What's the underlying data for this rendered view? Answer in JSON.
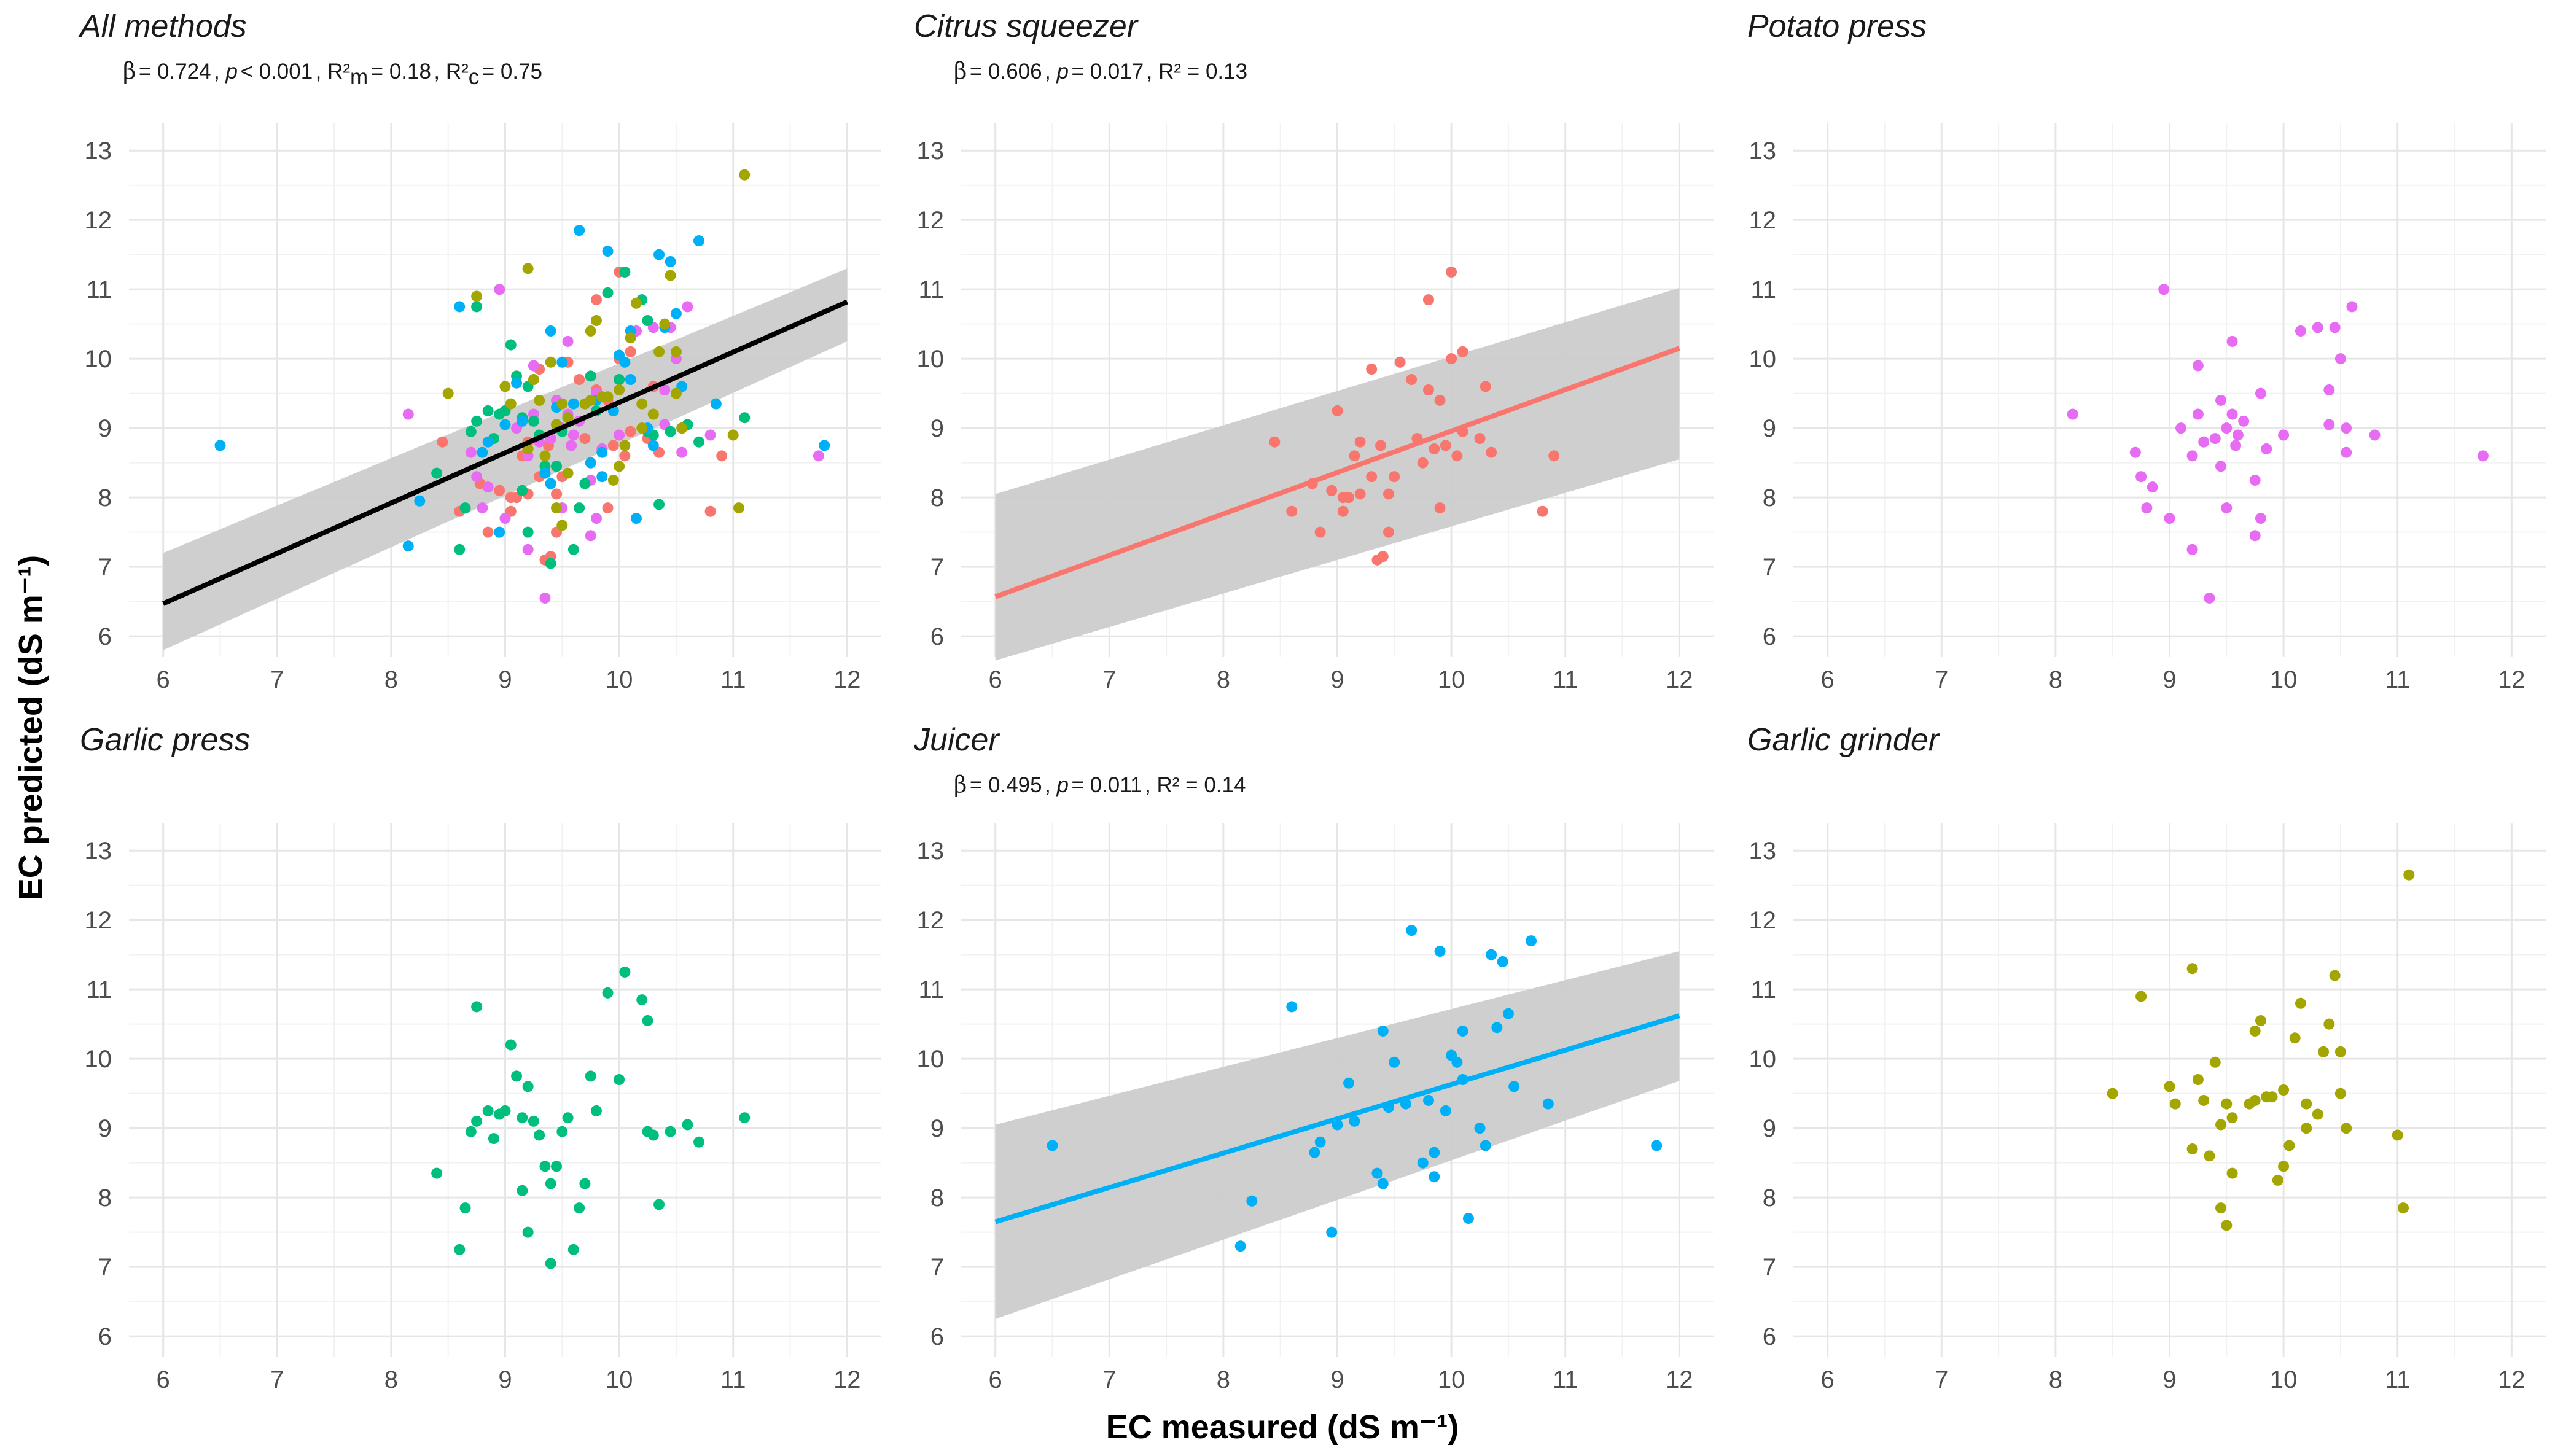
{
  "figure": {
    "y_axis_title": "EC predicted (dS m⁻¹)",
    "x_axis_title": "EC measured (dS m⁻¹)"
  },
  "colors": {
    "Citrus squeezer": "#F8766D",
    "Garlic grinder": "#A3A500",
    "Garlic press": "#00BF7D",
    "Juicer": "#00B0F6",
    "Potato press": "#E76BF3",
    "overall_line": "#000000",
    "ribbon": "#CCCCCC"
  },
  "chart_data": [
    {
      "type": "scatter",
      "panel": "all",
      "title": "All methods",
      "stats": {
        "beta_symbol": "β",
        "beta": "0.724",
        "p": "< 0.001",
        "r2m": "0.18",
        "r2c": "0.75"
      },
      "xlim": [
        5.7,
        12.3
      ],
      "ylim": [
        5.7,
        13.4
      ],
      "xticks": [
        6,
        7,
        8,
        9,
        10,
        11,
        12
      ],
      "yticks": [
        6,
        7,
        8,
        9,
        10,
        11,
        12,
        13
      ],
      "fit": {
        "x": [
          6,
          12
        ],
        "y": [
          6.47,
          10.82
        ],
        "ci_lo": [
          5.8,
          10.25
        ],
        "ci_hi": [
          7.2,
          11.3
        ],
        "color": "#000000"
      },
      "series_from": [
        "Citrus squeezer",
        "Potato press",
        "Garlic press",
        "Juicer",
        "Garlic grinder"
      ]
    },
    {
      "type": "scatter",
      "panel": "citrus",
      "title": "Citrus squeezer",
      "stats": {
        "beta_symbol": "β",
        "beta": "0.606",
        "p": "0.017",
        "r2": "0.13"
      },
      "xlim": [
        5.7,
        12.3
      ],
      "ylim": [
        5.7,
        13.4
      ],
      "xticks": [
        6,
        7,
        8,
        9,
        10,
        11,
        12
      ],
      "yticks": [
        6,
        7,
        8,
        9,
        10,
        11,
        12,
        13
      ],
      "fit": {
        "x": [
          6,
          12
        ],
        "y": [
          6.57,
          10.15
        ],
        "ci_lo": [
          5.65,
          8.55
        ],
        "ci_hi": [
          8.05,
          11.02
        ],
        "color": "#F8766D"
      },
      "series": [
        {
          "name": "Citrus squeezer",
          "color": "#F8766D",
          "points": [
            [
              8.45,
              8.8
            ],
            [
              8.6,
              7.8
            ],
            [
              8.78,
              8.2
            ],
            [
              8.85,
              7.5
            ],
            [
              8.95,
              8.1
            ],
            [
              9.0,
              9.25
            ],
            [
              9.05,
              8.0
            ],
            [
              9.05,
              7.8
            ],
            [
              9.1,
              8.0
            ],
            [
              9.15,
              8.6
            ],
            [
              9.2,
              8.05
            ],
            [
              9.2,
              8.8
            ],
            [
              9.3,
              8.3
            ],
            [
              9.3,
              9.85
            ],
            [
              9.35,
              7.1
            ],
            [
              9.38,
              8.75
            ],
            [
              9.4,
              7.15
            ],
            [
              9.45,
              8.05
            ],
            [
              9.45,
              7.5
            ],
            [
              9.5,
              8.3
            ],
            [
              9.55,
              9.95
            ],
            [
              9.65,
              9.7
            ],
            [
              9.7,
              8.85
            ],
            [
              9.75,
              8.5
            ],
            [
              9.8,
              10.85
            ],
            [
              9.8,
              9.55
            ],
            [
              9.85,
              8.7
            ],
            [
              9.9,
              9.4
            ],
            [
              9.9,
              7.85
            ],
            [
              9.95,
              8.75
            ],
            [
              10.0,
              11.25
            ],
            [
              10.0,
              10.0
            ],
            [
              10.05,
              8.6
            ],
            [
              10.1,
              10.1
            ],
            [
              10.1,
              8.95
            ],
            [
              10.25,
              8.85
            ],
            [
              10.3,
              9.6
            ],
            [
              10.35,
              8.65
            ],
            [
              10.8,
              7.8
            ],
            [
              10.9,
              8.6
            ]
          ]
        }
      ]
    },
    {
      "type": "scatter",
      "panel": "potato",
      "title": "Potato press",
      "xlim": [
        5.7,
        12.3
      ],
      "ylim": [
        5.7,
        13.4
      ],
      "xticks": [
        6,
        7,
        8,
        9,
        10,
        11,
        12
      ],
      "yticks": [
        6,
        7,
        8,
        9,
        10,
        11,
        12,
        13
      ],
      "series": [
        {
          "name": "Potato press",
          "color": "#E76BF3",
          "points": [
            [
              8.15,
              9.2
            ],
            [
              8.7,
              8.65
            ],
            [
              8.75,
              8.3
            ],
            [
              8.8,
              7.85
            ],
            [
              8.85,
              8.15
            ],
            [
              8.95,
              11.0
            ],
            [
              9.0,
              7.7
            ],
            [
              9.1,
              9.0
            ],
            [
              9.2,
              8.6
            ],
            [
              9.2,
              7.25
            ],
            [
              9.25,
              9.2
            ],
            [
              9.25,
              9.9
            ],
            [
              9.3,
              8.8
            ],
            [
              9.35,
              6.55
            ],
            [
              9.4,
              8.85
            ],
            [
              9.45,
              9.4
            ],
            [
              9.45,
              8.45
            ],
            [
              9.5,
              9.0
            ],
            [
              9.5,
              7.85
            ],
            [
              9.55,
              10.25
            ],
            [
              9.55,
              9.2
            ],
            [
              9.58,
              8.75
            ],
            [
              9.6,
              8.9
            ],
            [
              9.65,
              9.1
            ],
            [
              9.75,
              8.25
            ],
            [
              9.75,
              7.45
            ],
            [
              9.8,
              7.7
            ],
            [
              9.8,
              9.5
            ],
            [
              9.85,
              8.7
            ],
            [
              10.0,
              8.9
            ],
            [
              10.15,
              10.4
            ],
            [
              10.3,
              10.45
            ],
            [
              10.4,
              9.05
            ],
            [
              10.4,
              9.55
            ],
            [
              10.45,
              10.45
            ],
            [
              10.5,
              10.0
            ],
            [
              10.55,
              9.0
            ],
            [
              10.55,
              8.65
            ],
            [
              10.6,
              10.75
            ],
            [
              10.8,
              8.9
            ],
            [
              11.75,
              8.6
            ]
          ]
        }
      ]
    },
    {
      "type": "scatter",
      "panel": "garlic_press",
      "title": "Garlic press",
      "xlim": [
        5.7,
        12.3
      ],
      "ylim": [
        5.7,
        13.4
      ],
      "xticks": [
        6,
        7,
        8,
        9,
        10,
        11,
        12
      ],
      "yticks": [
        6,
        7,
        8,
        9,
        10,
        11,
        12,
        13
      ],
      "series": [
        {
          "name": "Garlic press",
          "color": "#00BF7D",
          "points": [
            [
              8.4,
              8.35
            ],
            [
              8.6,
              7.25
            ],
            [
              8.65,
              7.85
            ],
            [
              8.7,
              8.95
            ],
            [
              8.75,
              10.75
            ],
            [
              8.75,
              9.1
            ],
            [
              8.85,
              9.25
            ],
            [
              8.9,
              8.85
            ],
            [
              8.95,
              9.2
            ],
            [
              9.0,
              9.25
            ],
            [
              9.05,
              10.2
            ],
            [
              9.1,
              9.75
            ],
            [
              9.15,
              9.15
            ],
            [
              9.15,
              8.1
            ],
            [
              9.2,
              7.5
            ],
            [
              9.2,
              9.6
            ],
            [
              9.25,
              9.1
            ],
            [
              9.3,
              8.9
            ],
            [
              9.35,
              8.45
            ],
            [
              9.4,
              7.05
            ],
            [
              9.4,
              8.2
            ],
            [
              9.45,
              8.45
            ],
            [
              9.5,
              8.95
            ],
            [
              9.55,
              9.15
            ],
            [
              9.6,
              7.25
            ],
            [
              9.65,
              7.85
            ],
            [
              9.7,
              8.2
            ],
            [
              9.75,
              9.75
            ],
            [
              9.8,
              9.25
            ],
            [
              9.9,
              10.95
            ],
            [
              10.0,
              9.7
            ],
            [
              10.05,
              11.25
            ],
            [
              10.2,
              10.85
            ],
            [
              10.25,
              8.95
            ],
            [
              10.25,
              10.55
            ],
            [
              10.3,
              8.9
            ],
            [
              10.35,
              7.9
            ],
            [
              10.45,
              8.95
            ],
            [
              10.6,
              9.05
            ],
            [
              10.7,
              8.8
            ],
            [
              11.1,
              9.15
            ]
          ]
        }
      ]
    },
    {
      "type": "scatter",
      "panel": "juicer",
      "title": "Juicer",
      "stats": {
        "beta_symbol": "β",
        "beta": "0.495",
        "p": "0.011",
        "r2": "0.14"
      },
      "xlim": [
        5.7,
        12.3
      ],
      "ylim": [
        5.7,
        13.4
      ],
      "xticks": [
        6,
        7,
        8,
        9,
        10,
        11,
        12
      ],
      "yticks": [
        6,
        7,
        8,
        9,
        10,
        11,
        12,
        13
      ],
      "fit": {
        "x": [
          6,
          12
        ],
        "y": [
          7.65,
          10.62
        ],
        "ci_lo": [
          6.25,
          9.68
        ],
        "ci_hi": [
          9.05,
          11.55
        ],
        "color": "#00B0F6"
      },
      "series": [
        {
          "name": "Juicer",
          "color": "#00B0F6",
          "points": [
            [
              6.5,
              8.75
            ],
            [
              8.15,
              7.3
            ],
            [
              8.25,
              7.95
            ],
            [
              8.6,
              10.75
            ],
            [
              8.8,
              8.65
            ],
            [
              8.85,
              8.8
            ],
            [
              8.95,
              7.5
            ],
            [
              9.0,
              9.05
            ],
            [
              9.1,
              9.65
            ],
            [
              9.15,
              9.1
            ],
            [
              9.35,
              8.35
            ],
            [
              9.4,
              8.2
            ],
            [
              9.4,
              10.4
            ],
            [
              9.45,
              9.3
            ],
            [
              9.5,
              9.95
            ],
            [
              9.6,
              9.35
            ],
            [
              9.65,
              11.85
            ],
            [
              9.75,
              8.5
            ],
            [
              9.8,
              9.4
            ],
            [
              9.85,
              8.65
            ],
            [
              9.85,
              8.3
            ],
            [
              9.9,
              11.55
            ],
            [
              9.95,
              9.25
            ],
            [
              10.0,
              10.05
            ],
            [
              10.05,
              9.95
            ],
            [
              10.1,
              9.7
            ],
            [
              10.1,
              10.4
            ],
            [
              10.15,
              7.7
            ],
            [
              10.25,
              9.0
            ],
            [
              10.3,
              8.75
            ],
            [
              10.35,
              11.5
            ],
            [
              10.4,
              10.45
            ],
            [
              10.45,
              11.4
            ],
            [
              10.5,
              10.65
            ],
            [
              10.55,
              9.6
            ],
            [
              10.7,
              11.7
            ],
            [
              10.85,
              9.35
            ],
            [
              11.8,
              8.75
            ]
          ]
        }
      ]
    },
    {
      "type": "scatter",
      "panel": "garlic_grinder",
      "title": "Garlic grinder",
      "xlim": [
        5.7,
        12.3
      ],
      "ylim": [
        5.7,
        13.4
      ],
      "xticks": [
        6,
        7,
        8,
        9,
        10,
        11,
        12
      ],
      "yticks": [
        6,
        7,
        8,
        9,
        10,
        11,
        12,
        13
      ],
      "series": [
        {
          "name": "Garlic grinder",
          "color": "#A3A500",
          "points": [
            [
              8.5,
              9.5
            ],
            [
              8.75,
              10.9
            ],
            [
              9.0,
              9.6
            ],
            [
              9.05,
              9.35
            ],
            [
              9.2,
              11.3
            ],
            [
              9.2,
              8.7
            ],
            [
              9.25,
              9.7
            ],
            [
              9.3,
              9.4
            ],
            [
              9.35,
              8.6
            ],
            [
              9.4,
              9.95
            ],
            [
              9.45,
              7.85
            ],
            [
              9.45,
              9.05
            ],
            [
              9.5,
              7.6
            ],
            [
              9.5,
              9.35
            ],
            [
              9.55,
              8.35
            ],
            [
              9.55,
              9.15
            ],
            [
              9.7,
              9.35
            ],
            [
              9.75,
              10.4
            ],
            [
              9.75,
              9.4
            ],
            [
              9.8,
              10.55
            ],
            [
              9.85,
              9.45
            ],
            [
              9.9,
              9.45
            ],
            [
              9.95,
              8.25
            ],
            [
              10.0,
              9.55
            ],
            [
              10.0,
              8.45
            ],
            [
              10.05,
              8.75
            ],
            [
              10.1,
              10.3
            ],
            [
              10.15,
              10.8
            ],
            [
              10.2,
              9.0
            ],
            [
              10.2,
              9.35
            ],
            [
              10.3,
              9.2
            ],
            [
              10.35,
              10.1
            ],
            [
              10.4,
              10.5
            ],
            [
              10.45,
              11.2
            ],
            [
              10.5,
              10.1
            ],
            [
              10.5,
              9.5
            ],
            [
              10.55,
              9.0
            ],
            [
              11.0,
              8.9
            ],
            [
              11.05,
              7.85
            ],
            [
              11.1,
              12.65
            ]
          ]
        }
      ]
    }
  ]
}
